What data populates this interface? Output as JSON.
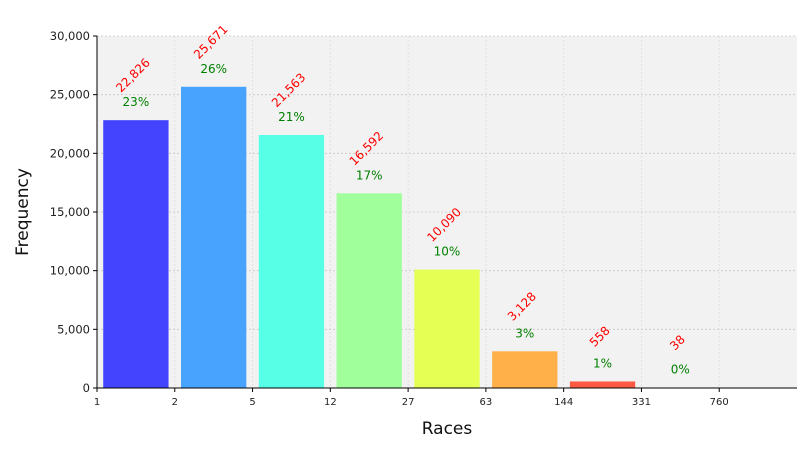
{
  "chart_data": {
    "type": "bar",
    "xlabel": "Races",
    "ylabel": "Frequency",
    "x_ticks": [
      "1",
      "2",
      "5",
      "12",
      "27",
      "63",
      "144",
      "331",
      "760"
    ],
    "y_ticks": [
      "0",
      "5,000",
      "10,000",
      "15,000",
      "20,000",
      "25,000",
      "30,000"
    ],
    "ylim": [
      0,
      30000
    ],
    "grid": true,
    "bars": [
      {
        "bin": [
          1,
          2
        ],
        "value": 22826,
        "count_label": "22,826",
        "pct_label": "23%",
        "color": "#4444ff"
      },
      {
        "bin": [
          2,
          5
        ],
        "value": 25671,
        "count_label": "25,671",
        "pct_label": "26%",
        "color": "#48a3ff"
      },
      {
        "bin": [
          5,
          12
        ],
        "value": 21563,
        "count_label": "21,563",
        "pct_label": "21%",
        "color": "#57ffe6"
      },
      {
        "bin": [
          12,
          27
        ],
        "value": 16592,
        "count_label": "16,592",
        "pct_label": "17%",
        "color": "#a1ff9b"
      },
      {
        "bin": [
          27,
          63
        ],
        "value": 10090,
        "count_label": "10,090",
        "pct_label": "10%",
        "color": "#e6ff55"
      },
      {
        "bin": [
          63,
          144
        ],
        "value": 3128,
        "count_label": "3,128",
        "pct_label": "3%",
        "color": "#ffb048"
      },
      {
        "bin": [
          144,
          331
        ],
        "value": 558,
        "count_label": "558",
        "pct_label": "1%",
        "color": "#ff5a44"
      },
      {
        "bin": [
          331,
          760
        ],
        "value": 38,
        "count_label": "38",
        "pct_label": "0%",
        "color": "#b22222"
      }
    ],
    "count_label_color": "#ff0000",
    "pct_label_color": "#008000",
    "plot_background": "#f2f2f2"
  }
}
